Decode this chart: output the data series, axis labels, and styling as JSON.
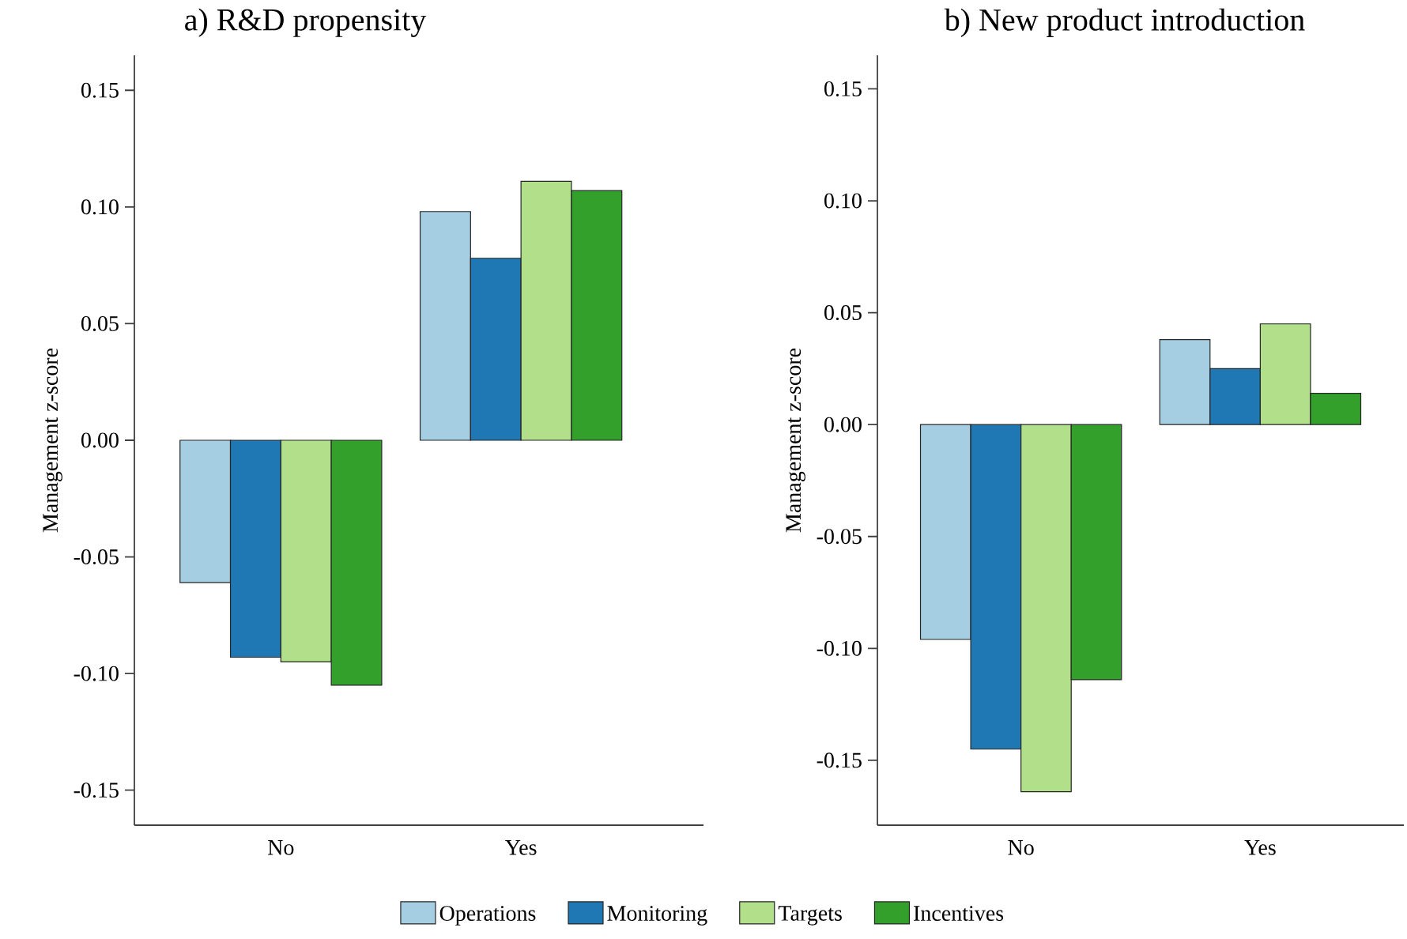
{
  "chart_data": [
    {
      "type": "bar",
      "title": "a) R&D propensity",
      "ylabel": "Management z-score",
      "categories": [
        "No",
        "Yes"
      ],
      "series": [
        {
          "color": "#a6cee3",
          "values": [
            -0.061,
            0.098
          ]
        },
        {
          "color": "#1f78b4",
          "values": [
            -0.093,
            0.078
          ]
        },
        {
          "color": "#b2df8a",
          "values": [
            -0.095,
            0.111
          ]
        },
        {
          "color": "#33a02c",
          "values": [
            -0.105,
            0.107
          ]
        }
      ],
      "ylim": [
        -0.165,
        0.165
      ],
      "yticks": [
        -0.15,
        {
          "value": -0.1,
          "label": "-0.10"
        },
        -0.05,
        {
          "value": 0,
          "label": "0.00"
        },
        0.05,
        {
          "value": 0.1,
          "label": "0.10"
        },
        0.15
      ],
      "grid": false
    },
    {
      "type": "bar",
      "title": "b) New product introduction",
      "ylabel": "Management z-score",
      "categories": [
        "No",
        "Yes"
      ],
      "series": [
        {
          "name": "Operations",
          "color": "#a6cee3",
          "values": [
            -0.096,
            0.038
          ]
        },
        {
          "name": "Monitoring",
          "color": "#1f78b4",
          "values": [
            -0.145,
            0.025
          ]
        },
        {
          "name": "Targets",
          "color": "#b2df8a",
          "values": [
            -0.164,
            0.045
          ]
        },
        {
          "name": "Incentives",
          "color": "#33a02c",
          "values": [
            -0.114,
            0.014
          ]
        }
      ],
      "ylim": [
        -0.179,
        0.165
      ],
      "yticks": [
        -0.15,
        {
          "value": -0.1,
          "label": "-0.10"
        },
        -0.05,
        {
          "value": 0,
          "label": "0.00"
        },
        0.05,
        {
          "value": 0.1,
          "label": "0.10"
        },
        0.15
      ],
      "grid": false,
      "legend": "bottom"
    }
  ]
}
